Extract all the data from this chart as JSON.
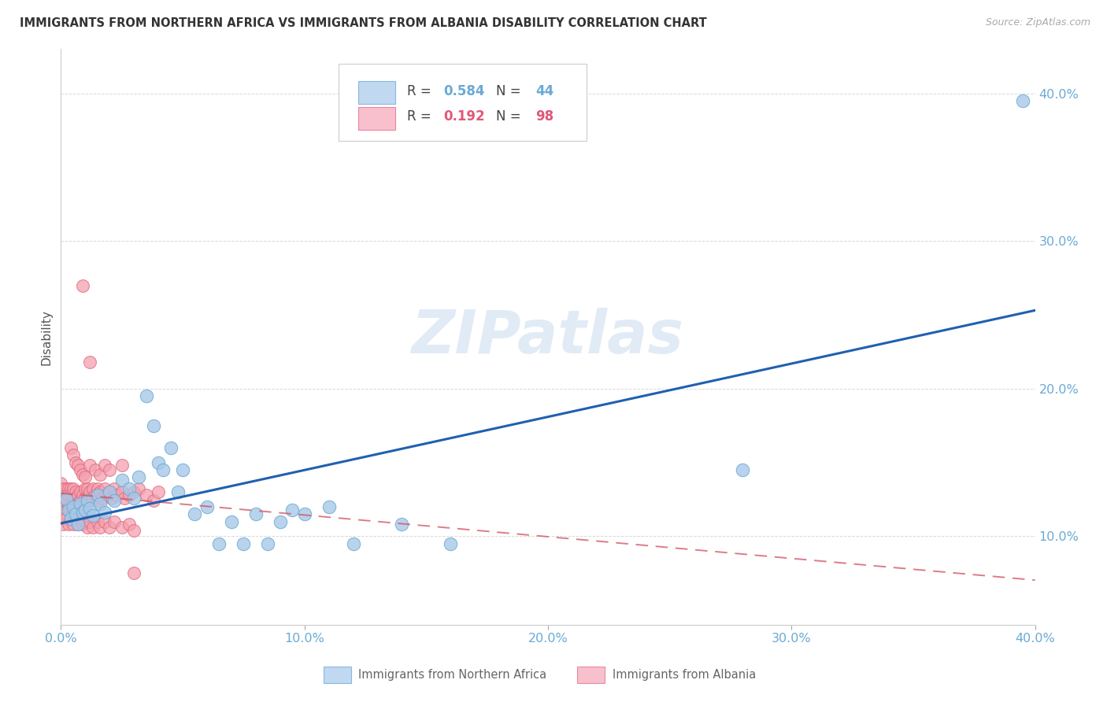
{
  "title": "IMMIGRANTS FROM NORTHERN AFRICA VS IMMIGRANTS FROM ALBANIA DISABILITY CORRELATION CHART",
  "source": "Source: ZipAtlas.com",
  "ylabel": "Disability",
  "watermark": "ZIPatlas",
  "xlim": [
    0.0,
    0.4
  ],
  "ylim": [
    0.04,
    0.43
  ],
  "xticks": [
    0.0,
    0.1,
    0.2,
    0.3,
    0.4
  ],
  "yticks": [
    0.1,
    0.2,
    0.3,
    0.4
  ],
  "xtick_labels": [
    "0.0%",
    "10.0%",
    "20.0%",
    "30.0%",
    "40.0%"
  ],
  "ytick_labels": [
    "10.0%",
    "20.0%",
    "30.0%",
    "40.0%"
  ],
  "series1_color": "#a8c8e8",
  "series1_edge": "#6aaad4",
  "series2_color": "#f4a0b0",
  "series2_edge": "#e06878",
  "series1_label": "Immigrants from Northern Africa",
  "series2_label": "Immigrants from Albania",
  "R1": "0.584",
  "N1": "44",
  "R2": "0.192",
  "N2": "98",
  "trend1_color": "#2060b0",
  "trend2_color": "#d05060",
  "background_color": "#ffffff",
  "grid_color": "#d8d8d8",
  "tick_color": "#6aaad4",
  "legend_text_color": "#6aaad4",
  "series1_x": [
    0.002,
    0.003,
    0.004,
    0.005,
    0.006,
    0.007,
    0.008,
    0.009,
    0.01,
    0.011,
    0.012,
    0.013,
    0.015,
    0.016,
    0.018,
    0.02,
    0.022,
    0.025,
    0.028,
    0.03,
    0.032,
    0.035,
    0.038,
    0.04,
    0.042,
    0.045,
    0.048,
    0.05,
    0.055,
    0.06,
    0.065,
    0.07,
    0.075,
    0.08,
    0.085,
    0.09,
    0.095,
    0.1,
    0.11,
    0.12,
    0.14,
    0.16,
    0.28,
    0.395
  ],
  "series1_y": [
    0.125,
    0.118,
    0.112,
    0.12,
    0.115,
    0.108,
    0.122,
    0.116,
    0.118,
    0.124,
    0.119,
    0.114,
    0.128,
    0.122,
    0.116,
    0.13,
    0.124,
    0.138,
    0.132,
    0.126,
    0.14,
    0.195,
    0.175,
    0.15,
    0.145,
    0.16,
    0.13,
    0.145,
    0.115,
    0.12,
    0.095,
    0.11,
    0.095,
    0.115,
    0.095,
    0.11,
    0.118,
    0.115,
    0.12,
    0.095,
    0.108,
    0.095,
    0.145,
    0.395
  ],
  "series2_x": [
    0.0,
    0.0,
    0.0,
    0.0,
    0.0,
    0.001,
    0.001,
    0.001,
    0.002,
    0.002,
    0.002,
    0.003,
    0.003,
    0.003,
    0.004,
    0.004,
    0.004,
    0.005,
    0.005,
    0.005,
    0.005,
    0.006,
    0.006,
    0.006,
    0.007,
    0.007,
    0.007,
    0.008,
    0.008,
    0.008,
    0.009,
    0.009,
    0.01,
    0.01,
    0.01,
    0.011,
    0.011,
    0.012,
    0.012,
    0.013,
    0.013,
    0.014,
    0.015,
    0.015,
    0.016,
    0.017,
    0.018,
    0.019,
    0.02,
    0.021,
    0.022,
    0.023,
    0.025,
    0.026,
    0.028,
    0.03,
    0.032,
    0.035,
    0.038,
    0.04,
    0.0,
    0.001,
    0.002,
    0.003,
    0.004,
    0.005,
    0.006,
    0.007,
    0.008,
    0.009,
    0.01,
    0.011,
    0.012,
    0.013,
    0.015,
    0.016,
    0.018,
    0.02,
    0.022,
    0.025,
    0.028,
    0.03,
    0.004,
    0.005,
    0.006,
    0.007,
    0.008,
    0.009,
    0.01,
    0.012,
    0.014,
    0.016,
    0.018,
    0.02,
    0.025,
    0.009,
    0.012,
    0.03
  ],
  "series2_y": [
    0.128,
    0.132,
    0.136,
    0.122,
    0.118,
    0.132,
    0.128,
    0.124,
    0.132,
    0.128,
    0.124,
    0.132,
    0.128,
    0.12,
    0.132,
    0.128,
    0.12,
    0.132,
    0.126,
    0.122,
    0.116,
    0.13,
    0.125,
    0.118,
    0.128,
    0.122,
    0.115,
    0.13,
    0.124,
    0.116,
    0.128,
    0.122,
    0.132,
    0.126,
    0.118,
    0.132,
    0.126,
    0.13,
    0.124,
    0.132,
    0.126,
    0.128,
    0.132,
    0.124,
    0.13,
    0.126,
    0.132,
    0.128,
    0.13,
    0.126,
    0.132,
    0.128,
    0.13,
    0.126,
    0.128,
    0.13,
    0.132,
    0.128,
    0.124,
    0.13,
    0.112,
    0.108,
    0.112,
    0.108,
    0.112,
    0.108,
    0.112,
    0.108,
    0.112,
    0.108,
    0.11,
    0.106,
    0.11,
    0.106,
    0.11,
    0.106,
    0.11,
    0.106,
    0.11,
    0.106,
    0.108,
    0.104,
    0.16,
    0.155,
    0.15,
    0.148,
    0.145,
    0.142,
    0.14,
    0.148,
    0.145,
    0.142,
    0.148,
    0.145,
    0.148,
    0.27,
    0.218,
    0.075
  ]
}
